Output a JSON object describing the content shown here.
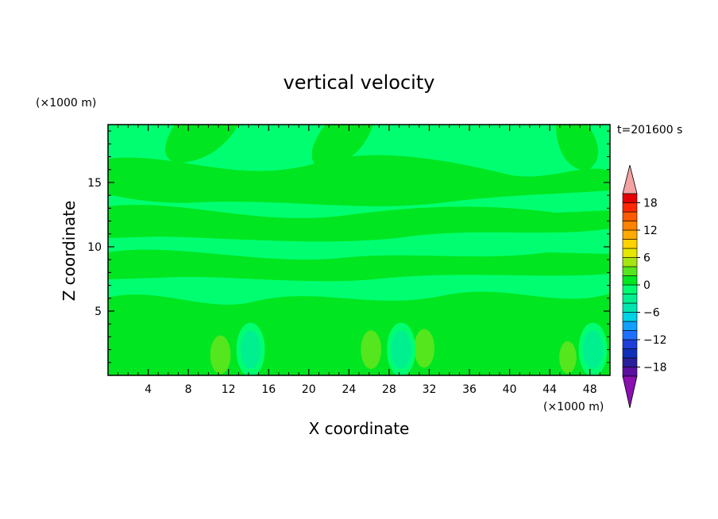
{
  "chart_data": {
    "type": "heatmap",
    "title": "vertical velocity",
    "xlabel": "X coordinate",
    "ylabel": "Z coordinate",
    "x_unit": "(×1000 m)",
    "y_unit": "(×1000 m)",
    "time_label": "t=201600 s",
    "xlim": [
      0,
      50
    ],
    "ylim": [
      0,
      19.5
    ],
    "x_ticks": [
      4,
      8,
      12,
      16,
      20,
      24,
      28,
      32,
      36,
      40,
      44,
      48
    ],
    "y_ticks": [
      5,
      10,
      15
    ],
    "colorbar": {
      "levels": [
        -20,
        -18,
        -16,
        -14,
        -12,
        -10,
        -8,
        -6,
        -4,
        -2,
        0,
        2,
        4,
        6,
        8,
        10,
        12,
        14,
        16,
        18,
        20
      ],
      "tick_labels": [
        "18",
        "12",
        "6",
        "0",
        "−6",
        "−12",
        "−18"
      ],
      "tick_values": [
        18,
        12,
        6,
        0,
        -6,
        -12,
        -18
      ],
      "colors": [
        "#5a0fa0",
        "#2a1f9a",
        "#1030b8",
        "#1e40d8",
        "#1f6fff",
        "#0fa0ff",
        "#00d2e6",
        "#00e6b0",
        "#00f090",
        "#00ff70",
        "#00e620",
        "#55e61e",
        "#a5e612",
        "#e6e600",
        "#ffd200",
        "#ffaa00",
        "#ff8200",
        "#ff5a00",
        "#ff2800",
        "#e60000"
      ],
      "under_color": "#8a10b0",
      "over_color": "#f4a2a2",
      "grid": false
    },
    "background_value": -1,
    "features": [
      {
        "kind": "upward cell",
        "x": 11.2,
        "z": 1.6,
        "w": 3.0
      },
      {
        "kind": "upward cell",
        "x": 26.2,
        "z": 2.0,
        "w": 2.8
      },
      {
        "kind": "upward cell",
        "x": 31.5,
        "z": 2.1,
        "w": 3.0
      },
      {
        "kind": "upward cell",
        "x": 45.8,
        "z": 1.4,
        "w": 2.4
      },
      {
        "kind": "downward cell",
        "x": 14.2,
        "z": 2.0,
        "w": -3.0
      },
      {
        "kind": "downward cell",
        "x": 29.2,
        "z": 2.0,
        "w": -3.5
      },
      {
        "kind": "downward cell",
        "x": 48.3,
        "z": 2.0,
        "w": -3.0
      }
    ]
  }
}
